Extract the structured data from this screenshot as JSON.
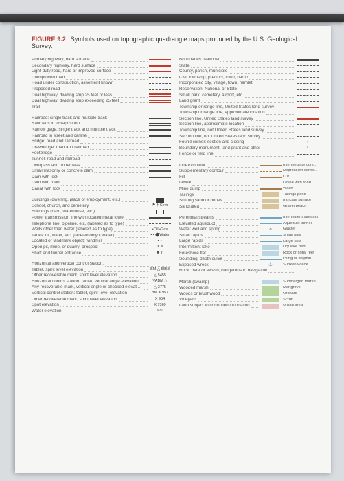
{
  "figure": {
    "label": "FIGURE 9.2",
    "caption": "Symbols used on topographic quadrangle maps produced by the U.S. Geological Survey."
  },
  "left": [
    {
      "t": "Primary highway, hard surface",
      "s": "s-red"
    },
    {
      "t": "Secondary highway, hard surface",
      "s": "s-red"
    },
    {
      "t": "Light-duty road, hard or improved surface",
      "s": "s-red"
    },
    {
      "t": "Unimproved road",
      "s": "s-dash"
    },
    {
      "t": "Road under construction, alinement known",
      "s": "s-dash"
    },
    {
      "t": "Proposed road",
      "s": "s-dash"
    },
    {
      "t": "Dual highway, dividing strip 25 feet or less",
      "s": "s-red-dbl"
    },
    {
      "t": "Dual highway, dividing strip exceeding 25 feet",
      "s": "s-red-dbl"
    },
    {
      "t": "Trail",
      "s": "s-dash"
    },
    {
      "gap": true
    },
    {
      "t": "Railroad: single track and multiple track",
      "s": "s-blk"
    },
    {
      "t": "Railroads in juxtaposition",
      "s": "s-blk-dbl"
    },
    {
      "t": "Narrow gage: single track and multiple track",
      "s": "s-blk"
    },
    {
      "t": "Railroad in street and carline",
      "s": "s-blk"
    },
    {
      "t": "Bridge: road and railroad",
      "s": "s-blk"
    },
    {
      "t": "Drawbridge: road and railroad",
      "s": "s-blk"
    },
    {
      "t": "Footbridge",
      "s": "s-blk"
    },
    {
      "t": "Tunnel: road and railroad",
      "s": "s-dash"
    },
    {
      "t": "Overpass and underpass",
      "s": "s-blk"
    },
    {
      "t": "Small masonry or concrete dam",
      "s": "s-blk-thick"
    },
    {
      "t": "Dam with lock",
      "s": "s-blk"
    },
    {
      "t": "Dam with road",
      "s": "s-blk"
    },
    {
      "t": "Canal with lock",
      "s": "s-blue-dbl"
    },
    {
      "gap": true
    },
    {
      "t": "Buildings (dwelling, place of employment, etc.)",
      "s": "s-blk-box"
    },
    {
      "t": "School, church, and cemetery",
      "s": "s-txt",
      "v": "⚑ † Cem"
    },
    {
      "t": "Buildings (barn, warehouse, etc.)",
      "s": "s-blk-open"
    },
    {
      "t": "Power transmission line with located metal tower",
      "s": "s-blk"
    },
    {
      "t": "Telephone line, pipeline, etc. (labeled as to type)",
      "s": "s-dash"
    },
    {
      "t": "Wells other than water (labeled as to type)",
      "s": "s-txt",
      "v": "•Oil  •Gas"
    },
    {
      "t": "Tanks: oil, water, etc. (labeled only if water)",
      "s": "s-txt",
      "v": "• • ⬤Water"
    },
    {
      "t": "Located or landmark object; windmill",
      "s": "s-txt",
      "v": "•    ᛭"
    },
    {
      "t": "Open pit, mine, or quarry; prospect",
      "s": "s-txt",
      "v": "✕    x"
    },
    {
      "t": "Shaft and tunnel entrance",
      "s": "s-txt",
      "v": "■    Y"
    },
    {
      "gap": true
    },
    {
      "t": "Horizontal and vertical control station:"
    },
    {
      "t": "    Tablet, spirit level elevation",
      "s": "s-txt",
      "v": "BM △ 5653"
    },
    {
      "t": "    Other recoverable mark, spirit level elevation",
      "s": "s-txt",
      "v": "△ 5455"
    },
    {
      "t": "Horizontal control station: tablet, vertical angle elevation",
      "s": "s-txt",
      "v": "VABM △"
    },
    {
      "t": "    Any recoverable mark, vertical angle or checked elevation",
      "s": "s-txt",
      "v": "△ 3775"
    },
    {
      "t": "Vertical control station: tablet, spirit level elevation",
      "s": "s-txt",
      "v": "BM X 957"
    },
    {
      "t": "    Other recoverable mark, spirit level elevation",
      "s": "s-txt",
      "v": "X 954"
    },
    {
      "t": "Spot elevation",
      "s": "s-txt",
      "v": "X 7369"
    },
    {
      "t": "Water elevation",
      "s": "s-txt",
      "v": "670"
    }
  ],
  "right": [
    {
      "t": "Boundaries: National",
      "s": "s-blk-thick"
    },
    {
      "t": "    State",
      "s": "s-dashdot"
    },
    {
      "t": "    County, parish, municipio",
      "s": "s-dashdot"
    },
    {
      "t": "    Civil township, precinct, town, barrio",
      "s": "s-dash"
    },
    {
      "t": "    Incorporated city, village, town, hamlet",
      "s": "s-dash"
    },
    {
      "t": "    Reservation, National or State",
      "s": "s-dash"
    },
    {
      "t": "    Small park, cemetery, airport, etc.",
      "s": "s-dash"
    },
    {
      "t": "    Land grant",
      "s": "s-dash"
    },
    {
      "t": "Township or range line, United States land survey",
      "s": "s-red"
    },
    {
      "t": "Township or range line, approximate location",
      "s": "s-dash"
    },
    {
      "t": "Section line, United States land survey",
      "s": "s-red"
    },
    {
      "t": "Section line, approximate location",
      "s": "s-dash"
    },
    {
      "t": "Township line, not United States land survey",
      "s": "s-dash"
    },
    {
      "t": "Section line, not United States land survey",
      "s": "s-dash"
    },
    {
      "t": "Found corner: section and closing",
      "s": "s-txt",
      "v": "+"
    },
    {
      "t": "Boundary monument: land grant and other",
      "s": "s-txt",
      "v": "▫"
    },
    {
      "t": "Fence or field line",
      "s": "s-dash"
    },
    {
      "gap": true
    },
    {
      "t": "Index contour",
      "r": "Intermediate contour",
      "s": "s-brown"
    },
    {
      "t": "Supplementary contour",
      "r": "Depression contours",
      "s": "s-brown-d"
    },
    {
      "t": "Fill",
      "r": "Cut",
      "s": "s-brown"
    },
    {
      "t": "Levee",
      "r": "Levee with road",
      "s": "s-brown"
    },
    {
      "t": "Mine dump",
      "r": "Wash",
      "s": "s-brown"
    },
    {
      "t": "Tailings",
      "r": "Tailings pond",
      "s": "s-tan"
    },
    {
      "t": "Shifting sand or dunes",
      "r": "Intricate surface",
      "s": "s-tan"
    },
    {
      "t": "Sand area",
      "r": "Gravel beach",
      "s": "s-tan"
    },
    {
      "gap": true
    },
    {
      "t": "Perennial streams",
      "r": "Intermittent streams",
      "s": "s-blue"
    },
    {
      "t": "Elevated aqueduct",
      "r": "Aqueduct tunnel",
      "s": "s-blue"
    },
    {
      "t": "Water well and spring",
      "r": "Glacier",
      "s": "s-txt",
      "v": "o"
    },
    {
      "t": "Small rapids",
      "r": "Small falls",
      "s": "s-blue"
    },
    {
      "t": "Large rapids",
      "r": "Large falls",
      "s": "s-blue"
    },
    {
      "t": "Intermittent lake",
      "r": "Dry lake bed",
      "s": "s-bluef"
    },
    {
      "t": "Foreshore flat",
      "r": "Rock or coral reef",
      "s": "s-bluef"
    },
    {
      "t": "Sounding, depth curve",
      "r": "Piling or dolphin",
      "s": "s-blue"
    },
    {
      "t": "Exposed wreck",
      "r": "Sunken wreck",
      "s": "s-txt",
      "v": "⚓"
    },
    {
      "t": "Rock, bare or awash; dangerous to navigation",
      "s": "s-txt",
      "v": "*"
    },
    {
      "gap": true
    },
    {
      "t": "Marsh (swamp)",
      "r": "Submerged marsh",
      "s": "s-bluef"
    },
    {
      "t": "Wooded marsh",
      "r": "Mangrove",
      "s": "s-green"
    },
    {
      "t": "Woods or brushwood",
      "r": "Orchard",
      "s": "s-green"
    },
    {
      "t": "Vineyard",
      "r": "Scrub",
      "s": "s-green"
    },
    {
      "t": "Land subject to controlled inundation",
      "r": "Urban area",
      "s": "s-pink"
    }
  ]
}
